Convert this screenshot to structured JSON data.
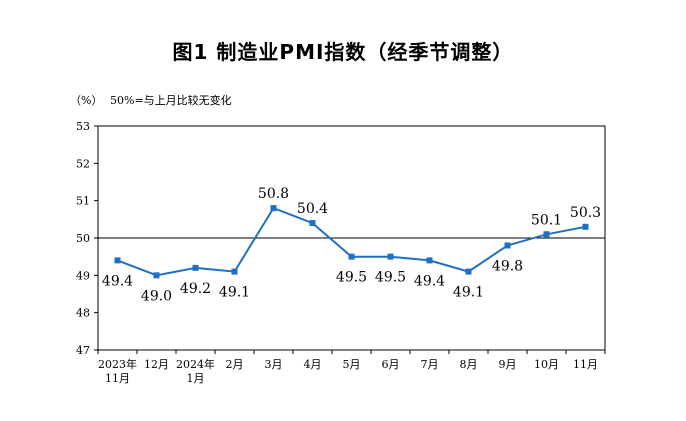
{
  "chart_data": {
    "type": "line",
    "title": "图1  制造业PMI指数（经季节调整）",
    "unit_label": "（%）",
    "note": "50%=与上月比较无变化",
    "categories": [
      [
        "2023年",
        "11月"
      ],
      [
        "12月"
      ],
      [
        "2024年",
        "1月"
      ],
      [
        "2月"
      ],
      [
        "3月"
      ],
      [
        "4月"
      ],
      [
        "5月"
      ],
      [
        "6月"
      ],
      [
        "7月"
      ],
      [
        "8月"
      ],
      [
        "9月"
      ],
      [
        "10月"
      ],
      [
        "11月"
      ]
    ],
    "values": [
      49.4,
      49.0,
      49.2,
      49.1,
      50.8,
      50.4,
      49.5,
      49.5,
      49.4,
      49.1,
      49.8,
      50.1,
      50.3
    ],
    "value_labels": [
      "49.4",
      "49.0",
      "49.2",
      "49.1",
      "50.8",
      "50.4",
      "49.5",
      "49.5",
      "49.4",
      "49.1",
      "49.8",
      "50.1",
      "50.3"
    ],
    "label_position": [
      "below",
      "below",
      "below",
      "below",
      "above",
      "above",
      "below",
      "below",
      "below",
      "below",
      "below",
      "above",
      "above"
    ],
    "ylim": [
      47,
      53
    ],
    "yticks": [
      47,
      48,
      49,
      50,
      51,
      52,
      53
    ],
    "reference_line": 50,
    "grid": false,
    "series_color": "#1f6fc5"
  }
}
